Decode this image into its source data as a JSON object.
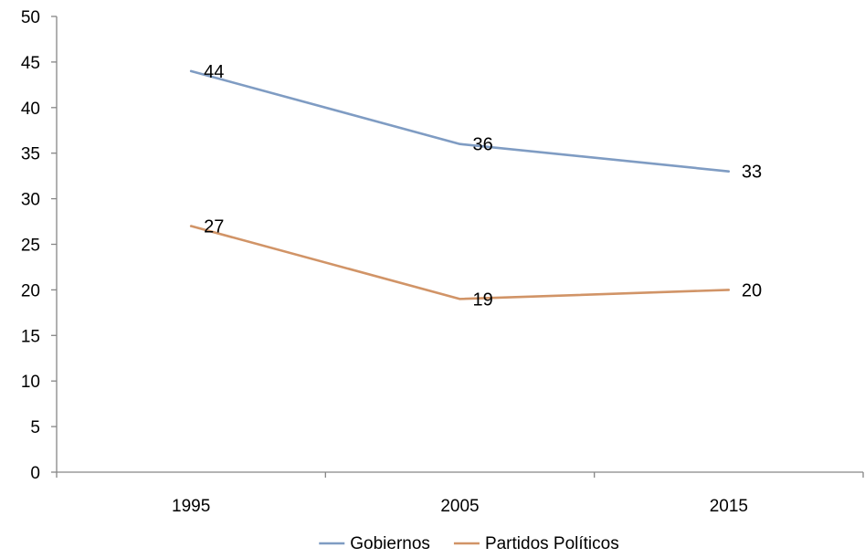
{
  "chart_data": {
    "type": "line",
    "x": [
      "1995",
      "2005",
      "2015"
    ],
    "ylim": [
      0,
      50
    ],
    "yticks": [
      0,
      5,
      10,
      15,
      20,
      25,
      30,
      35,
      40,
      45,
      50
    ],
    "grid": false,
    "legend_position": "bottom",
    "series": [
      {
        "name": "Gobiernos",
        "values": [
          44,
          36,
          33
        ],
        "color": "#7F9CC3"
      },
      {
        "name": "Partidos Políticos",
        "values": [
          27,
          19,
          20
        ],
        "color": "#D19467"
      }
    ]
  }
}
